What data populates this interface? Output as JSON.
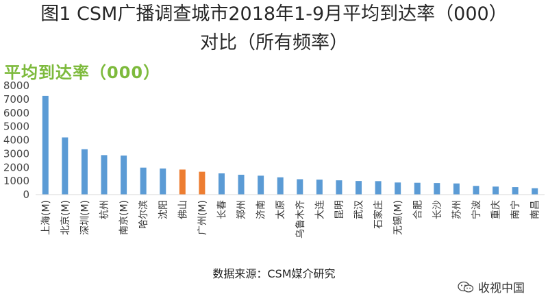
{
  "title_line1": "图1 CSM广播调查城市2018年1-9月平均到达率（000）",
  "title_line2": "对比（所有频率）",
  "source": "数据来源：CSM媒介研究",
  "watermark": "收视中国",
  "chart_data": {
    "type": "bar",
    "ylabel": "平均到达率（000）",
    "ylim": [
      0,
      8000
    ],
    "yticks": [
      0,
      1000,
      2000,
      3000,
      4000,
      5000,
      6000,
      7000,
      8000
    ],
    "grid": false,
    "categories": [
      "上海(M)",
      "北京(M)",
      "深圳(M)",
      "杭州",
      "南京(M)",
      "哈尔滨",
      "沈阳",
      "佛山",
      "广州(M)",
      "长春",
      "郑州",
      "济南",
      "太原",
      "乌鲁木齐",
      "大连",
      "昆明",
      "武汉",
      "石家庄",
      "无锡(M)",
      "合肥",
      "长沙",
      "苏州",
      "宁波",
      "重庆",
      "南宁",
      "南昌"
    ],
    "values": [
      7250,
      4200,
      3330,
      2900,
      2870,
      1980,
      1920,
      1840,
      1680,
      1560,
      1460,
      1390,
      1270,
      1130,
      1100,
      1050,
      1000,
      990,
      890,
      870,
      850,
      820,
      640,
      590,
      550,
      470
    ],
    "colors": {
      "default": "#5b9bd5",
      "highlight": "#ed7d31"
    },
    "highlight_indices": [
      7,
      8
    ]
  }
}
